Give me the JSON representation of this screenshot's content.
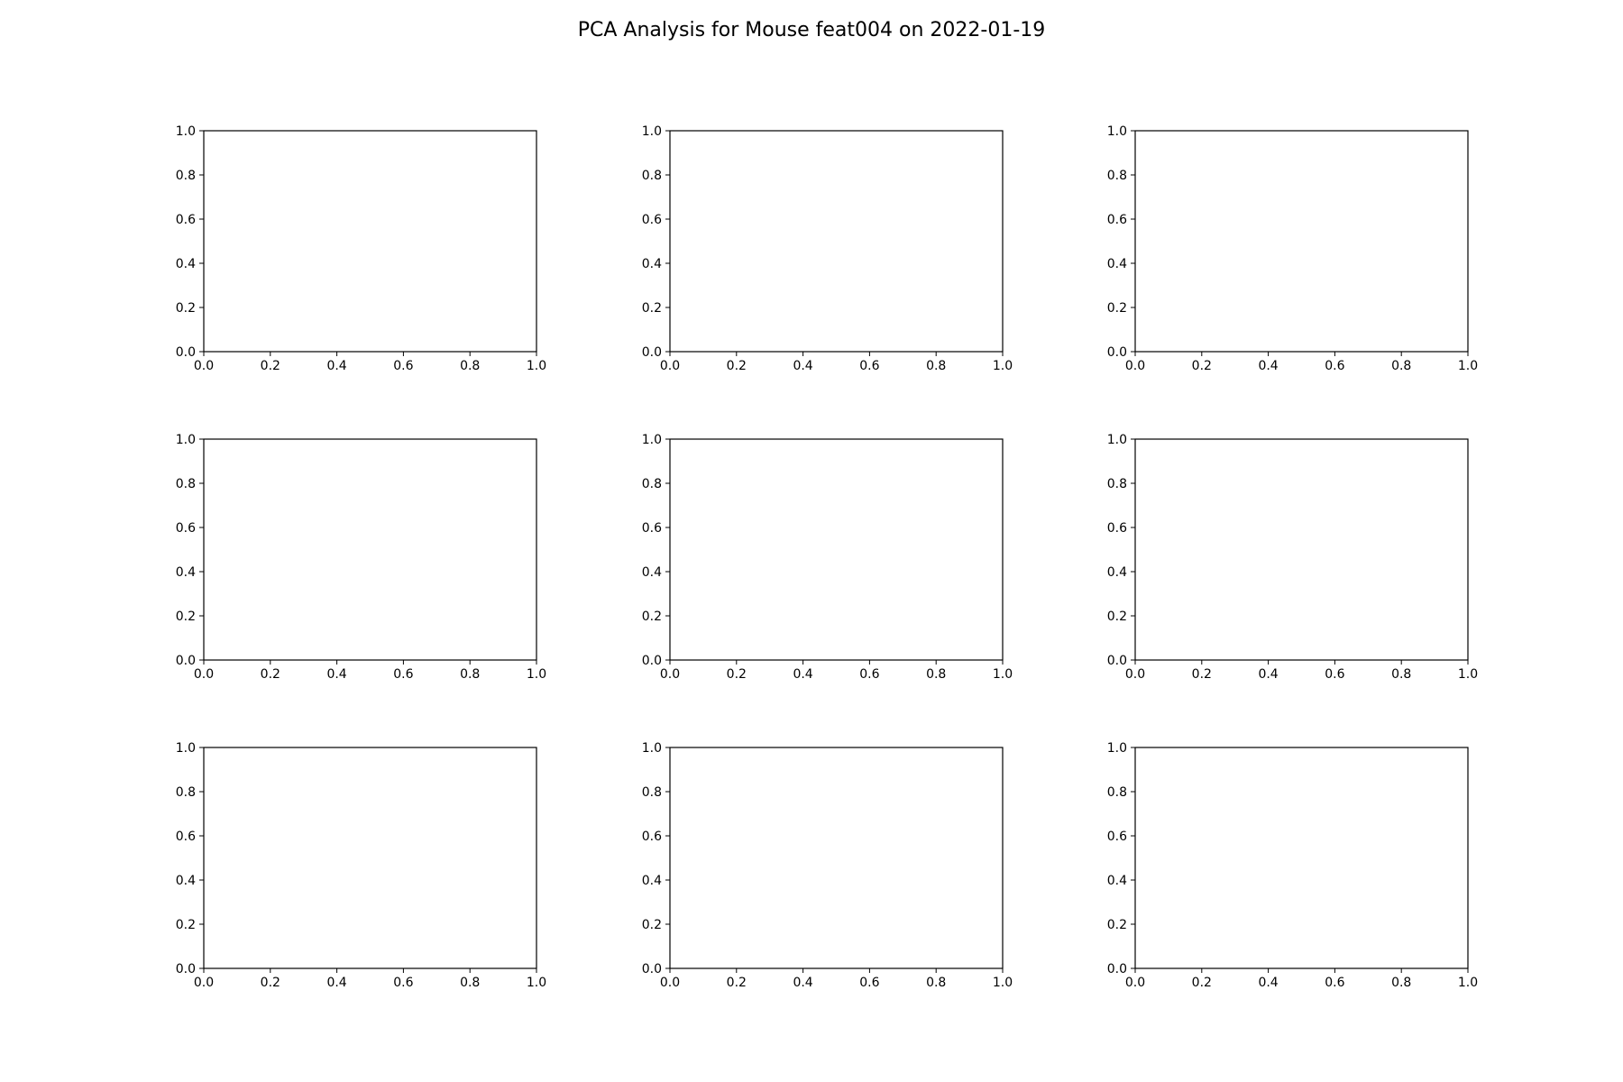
{
  "chart_data": {
    "type": "scatter",
    "title": "PCA Analysis for Mouse feat004 on 2022-01-19",
    "grid": false,
    "layout": {
      "rows": 3,
      "cols": 3
    },
    "panels": [
      {
        "xlim": [
          0.0,
          1.0
        ],
        "ylim": [
          0.0,
          1.0
        ],
        "xticks": [
          "0.0",
          "0.2",
          "0.4",
          "0.6",
          "0.8",
          "1.0"
        ],
        "yticks": [
          "0.0",
          "0.2",
          "0.4",
          "0.6",
          "0.8",
          "1.0"
        ],
        "series": []
      },
      {
        "xlim": [
          0.0,
          1.0
        ],
        "ylim": [
          0.0,
          1.0
        ],
        "xticks": [
          "0.0",
          "0.2",
          "0.4",
          "0.6",
          "0.8",
          "1.0"
        ],
        "yticks": [
          "0.0",
          "0.2",
          "0.4",
          "0.6",
          "0.8",
          "1.0"
        ],
        "series": []
      },
      {
        "xlim": [
          0.0,
          1.0
        ],
        "ylim": [
          0.0,
          1.0
        ],
        "xticks": [
          "0.0",
          "0.2",
          "0.4",
          "0.6",
          "0.8",
          "1.0"
        ],
        "yticks": [
          "0.0",
          "0.2",
          "0.4",
          "0.6",
          "0.8",
          "1.0"
        ],
        "series": []
      },
      {
        "xlim": [
          0.0,
          1.0
        ],
        "ylim": [
          0.0,
          1.0
        ],
        "xticks": [
          "0.0",
          "0.2",
          "0.4",
          "0.6",
          "0.8",
          "1.0"
        ],
        "yticks": [
          "0.0",
          "0.2",
          "0.4",
          "0.6",
          "0.8",
          "1.0"
        ],
        "series": []
      },
      {
        "xlim": [
          0.0,
          1.0
        ],
        "ylim": [
          0.0,
          1.0
        ],
        "xticks": [
          "0.0",
          "0.2",
          "0.4",
          "0.6",
          "0.8",
          "1.0"
        ],
        "yticks": [
          "0.0",
          "0.2",
          "0.4",
          "0.6",
          "0.8",
          "1.0"
        ],
        "series": []
      },
      {
        "xlim": [
          0.0,
          1.0
        ],
        "ylim": [
          0.0,
          1.0
        ],
        "xticks": [
          "0.0",
          "0.2",
          "0.4",
          "0.6",
          "0.8",
          "1.0"
        ],
        "yticks": [
          "0.0",
          "0.2",
          "0.4",
          "0.6",
          "0.8",
          "1.0"
        ],
        "series": []
      },
      {
        "xlim": [
          0.0,
          1.0
        ],
        "ylim": [
          0.0,
          1.0
        ],
        "xticks": [
          "0.0",
          "0.2",
          "0.4",
          "0.6",
          "0.8",
          "1.0"
        ],
        "yticks": [
          "0.0",
          "0.2",
          "0.4",
          "0.6",
          "0.8",
          "1.0"
        ],
        "series": []
      },
      {
        "xlim": [
          0.0,
          1.0
        ],
        "ylim": [
          0.0,
          1.0
        ],
        "xticks": [
          "0.0",
          "0.2",
          "0.4",
          "0.6",
          "0.8",
          "1.0"
        ],
        "yticks": [
          "0.0",
          "0.2",
          "0.4",
          "0.6",
          "0.8",
          "1.0"
        ],
        "series": []
      },
      {
        "xlim": [
          0.0,
          1.0
        ],
        "ylim": [
          0.0,
          1.0
        ],
        "xticks": [
          "0.0",
          "0.2",
          "0.4",
          "0.6",
          "0.8",
          "1.0"
        ],
        "yticks": [
          "0.0",
          "0.2",
          "0.4",
          "0.6",
          "0.8",
          "1.0"
        ],
        "series": []
      }
    ]
  }
}
